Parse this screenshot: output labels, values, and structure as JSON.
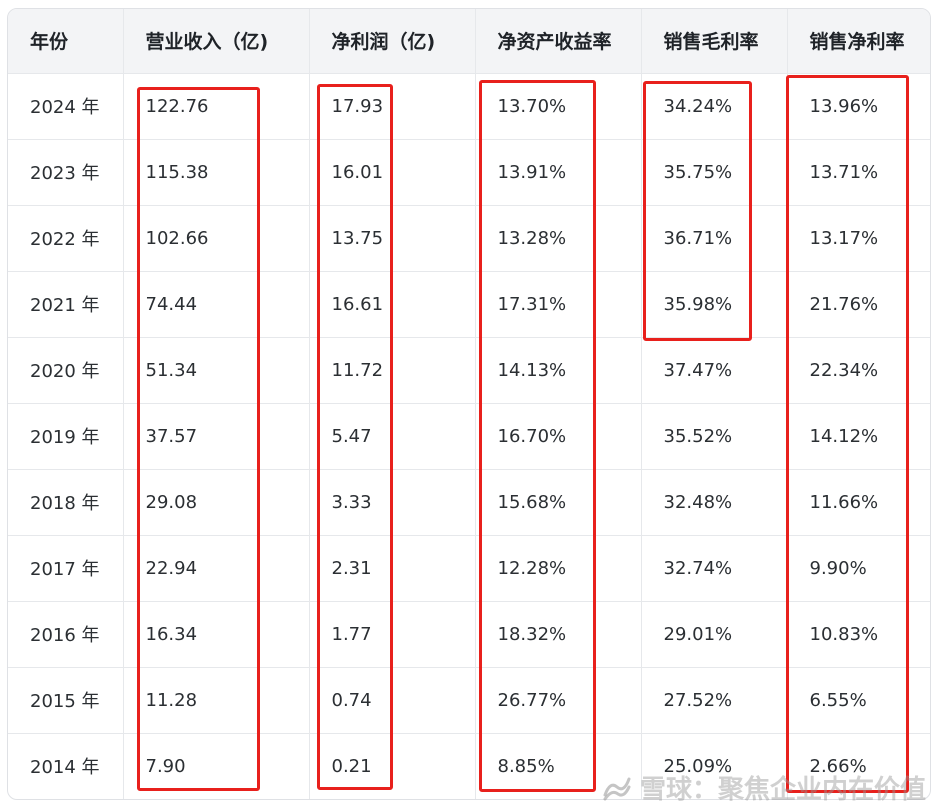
{
  "table": {
    "headers": [
      "年份",
      "营业收入（亿)",
      "净利润（亿)",
      "净资产收益率",
      "销售毛利率",
      "销售净利率"
    ],
    "rows": [
      [
        "2024 年",
        "122.76",
        "17.93",
        "13.70%",
        "34.24%",
        "13.96%"
      ],
      [
        "2023 年",
        "115.38",
        "16.01",
        "13.91%",
        "35.75%",
        "13.71%"
      ],
      [
        "2022 年",
        "102.66",
        "13.75",
        "13.28%",
        "36.71%",
        "13.17%"
      ],
      [
        "2021 年",
        "74.44",
        "16.61",
        "17.31%",
        "35.98%",
        "21.76%"
      ],
      [
        "2020 年",
        "51.34",
        "11.72",
        "14.13%",
        "37.47%",
        "22.34%"
      ],
      [
        "2019 年",
        "37.57",
        "5.47",
        "16.70%",
        "35.52%",
        "14.12%"
      ],
      [
        "2018 年",
        "29.08",
        "3.33",
        "15.68%",
        "32.48%",
        "11.66%"
      ],
      [
        "2017 年",
        "22.94",
        "2.31",
        "12.28%",
        "32.74%",
        "9.90%"
      ],
      [
        "2016 年",
        "16.34",
        "1.77",
        "18.32%",
        "29.01%",
        "10.83%"
      ],
      [
        "2015 年",
        "11.28",
        "0.74",
        "26.77%",
        "27.52%",
        "6.55%"
      ],
      [
        "2014 年",
        "7.90",
        "0.21",
        "8.85%",
        "25.09%",
        "2.66%"
      ]
    ]
  },
  "colors": {
    "highlight": "#e8201c",
    "header_bg": "#f3f4f6",
    "border": "#e6e8eb"
  },
  "watermark": {
    "icon": "snowball-logo-icon",
    "text": "雪球：聚焦企业内在价值"
  }
}
